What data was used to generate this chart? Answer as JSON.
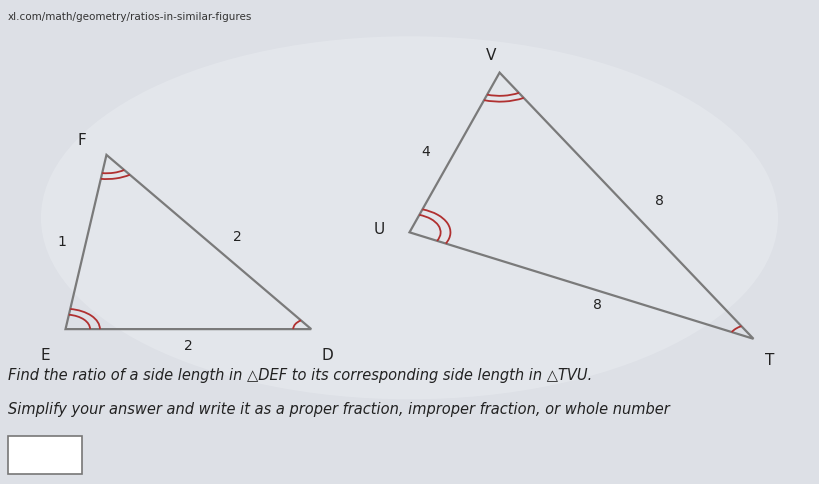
{
  "bg_color": "#dde0e6",
  "url_text": "xl.com/math/geometry/ratios-in-similar-figures",
  "triangle_DEF": {
    "E": [
      0.08,
      0.32
    ],
    "D": [
      0.38,
      0.32
    ],
    "F": [
      0.13,
      0.68
    ],
    "label_E": "E",
    "label_D": "D",
    "label_F": "F",
    "side_EF": "1",
    "side_FD": "2",
    "side_ED": "2",
    "color": "#7a7a7a"
  },
  "triangle_TVU": {
    "U": [
      0.5,
      0.52
    ],
    "T": [
      0.92,
      0.3
    ],
    "V": [
      0.61,
      0.85
    ],
    "label_U": "U",
    "label_T": "T",
    "label_V": "V",
    "side_UV": "4",
    "side_VT": "8",
    "side_UT": "8",
    "color": "#7a7a7a"
  },
  "question_line1": "Find the ratio of a side length in △DEF to its corresponding side length in △TVU.",
  "question_line2": "Simplify your answer and write it as a proper fraction, improper fraction, or whole number",
  "arc_color": "#b03030",
  "text_color": "#222222",
  "url_color": "#333333"
}
